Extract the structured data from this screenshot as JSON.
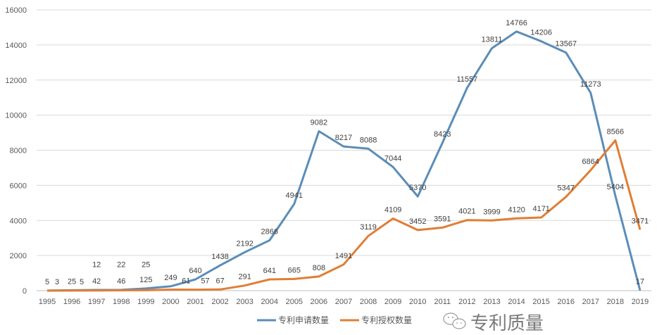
{
  "chart_data": {
    "type": "line",
    "title": "",
    "xlabel": "",
    "ylabel": "",
    "ylim": [
      0,
      16000
    ],
    "yticks": [
      0,
      2000,
      4000,
      6000,
      8000,
      10000,
      12000,
      14000,
      16000
    ],
    "grid": true,
    "legend_position": "bottom",
    "categories": [
      "1995",
      "1996",
      "1997",
      "1998",
      "1999",
      "2000",
      "2001",
      "2002",
      "2003",
      "2004",
      "2005",
      "2006",
      "2007",
      "2008",
      "2009",
      "2010",
      "2011",
      "2012",
      "2013",
      "2014",
      "2015",
      "2016",
      "2017",
      "2018",
      "2019"
    ],
    "series": [
      {
        "name": "专利申请数量",
        "color": "#5B8DB8",
        "values": [
          5,
          25,
          42,
          46,
          125,
          249,
          640,
          1438,
          2192,
          2866,
          4941,
          9082,
          8217,
          8088,
          7044,
          5370,
          8423,
          11557,
          13811,
          14766,
          14206,
          13567,
          11273,
          5404,
          17
        ]
      },
      {
        "name": "专利授权数量",
        "color": "#E07E35",
        "values": [
          3,
          5,
          12,
          22,
          25,
          61,
          57,
          67,
          291,
          641,
          665,
          808,
          1491,
          3119,
          4109,
          3452,
          3591,
          4021,
          3999,
          4120,
          4171,
          5347,
          6864,
          8566,
          3471
        ]
      }
    ]
  },
  "watermark": {
    "text": "专利质量",
    "icon": "wechat-icon"
  }
}
